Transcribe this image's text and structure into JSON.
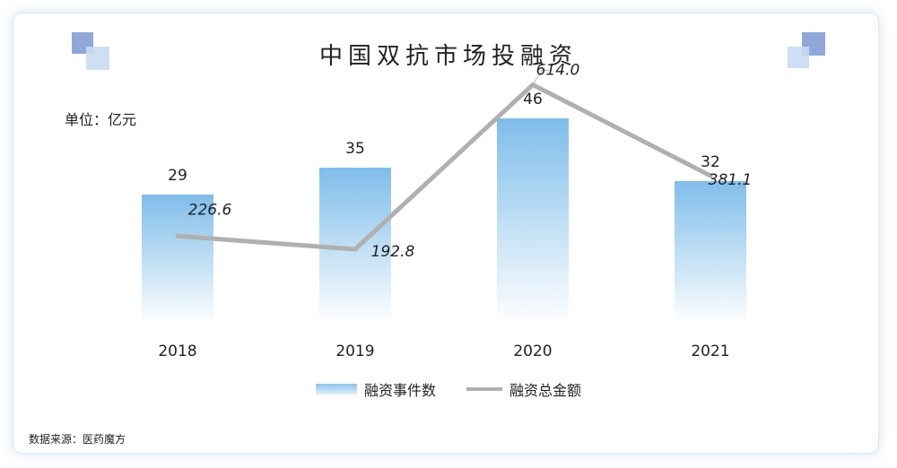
{
  "title": "中国双抗市场投融资",
  "unit_label": "单位：亿元",
  "source": "数据来源：医药魔方",
  "colors": {
    "bar_top": "#7fbdea",
    "bar_bottom": "#ffffff",
    "line": "#b0b0b0",
    "corner_dark": "#8fa8d9",
    "corner_light": "#c9daf2"
  },
  "chart_data": {
    "type": "bar",
    "categories": [
      "2018",
      "2019",
      "2020",
      "2021"
    ],
    "series": [
      {
        "name": "融资事件数",
        "type": "bar",
        "values": [
          29,
          35,
          46,
          32
        ]
      },
      {
        "name": "融资总金额",
        "type": "line",
        "values": [
          226.6,
          192.8,
          614.0,
          381.1
        ]
      }
    ],
    "bar_labels": [
      "29",
      "35",
      "46",
      "32"
    ],
    "line_labels": [
      "226.6",
      "192.8",
      "614.0",
      "381.1"
    ],
    "legend_position": "bottom",
    "grid": false
  }
}
